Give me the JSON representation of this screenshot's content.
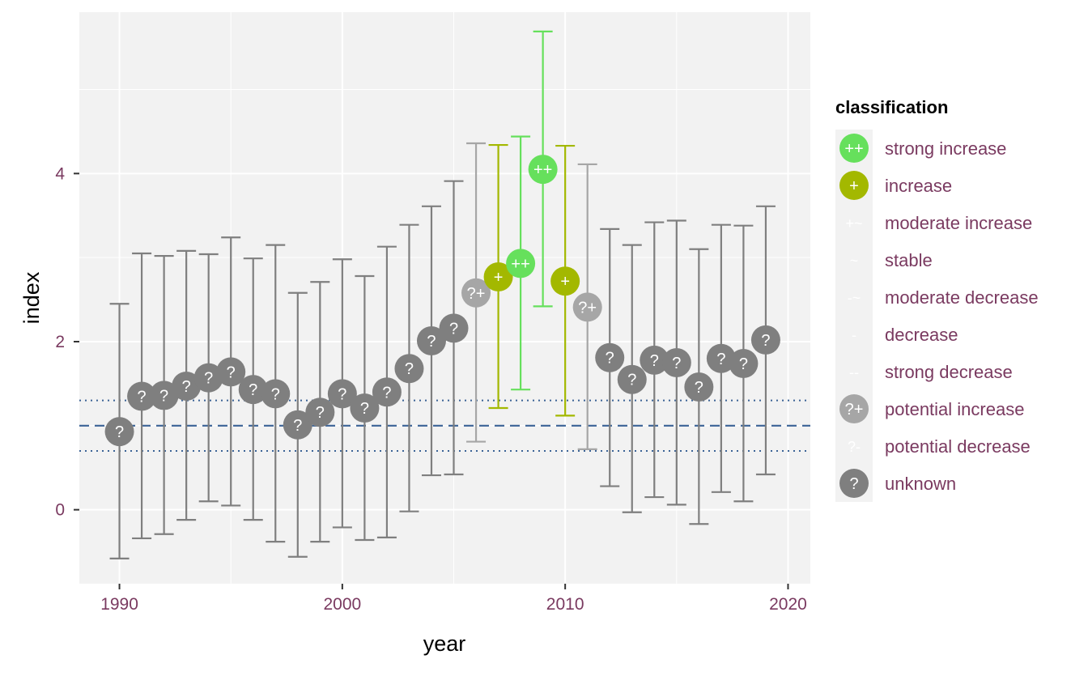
{
  "chart_data": {
    "type": "scatter",
    "title": "",
    "xlabel": "year",
    "ylabel": "index",
    "xlim": [
      1988.2,
      2021
    ],
    "ylim": [
      -0.88,
      5.92
    ],
    "x_ticks": [
      1990,
      2000,
      2010,
      2020
    ],
    "x_minor": [
      1995,
      2005,
      2015
    ],
    "y_ticks": [
      0,
      2,
      4
    ],
    "y_minor": [
      1,
      3,
      5
    ],
    "reference_line": 1.0,
    "threshold_lines": [
      0.7,
      1.3
    ],
    "grid": true,
    "legend": {
      "title": "classification",
      "placement": "right",
      "entries": [
        {
          "key": "strong_increase",
          "label": "strong increase",
          "symbol": "++",
          "color": "#66E05C",
          "marker": true
        },
        {
          "key": "increase",
          "label": "increase",
          "symbol": "+",
          "color": "#A3B800",
          "marker": true
        },
        {
          "key": "moderate_increase",
          "label": "moderate increase",
          "symbol": "+~",
          "color": "#BFD000",
          "marker": false
        },
        {
          "key": "stable",
          "label": "stable",
          "symbol": "~",
          "color": "#DDDDDD",
          "marker": false
        },
        {
          "key": "moderate_decrease",
          "label": "moderate decrease",
          "symbol": "-~",
          "color": "#F0B000",
          "marker": false
        },
        {
          "key": "decrease",
          "label": "decrease",
          "symbol": "-",
          "color": "#E08000",
          "marker": false
        },
        {
          "key": "strong_decrease",
          "label": "strong decrease",
          "symbol": "--",
          "color": "#D04000",
          "marker": false
        },
        {
          "key": "potential_increase",
          "label": "potential increase",
          "symbol": "?+",
          "color": "#A6A6A6",
          "marker": true
        },
        {
          "key": "potential_decrease",
          "label": "potential decrease",
          "symbol": "?-",
          "color": "#A6A6A6",
          "marker": false
        },
        {
          "key": "unknown",
          "label": "unknown",
          "symbol": "?",
          "color": "#7F7F7F",
          "marker": true
        }
      ]
    },
    "points": [
      {
        "x": 1990,
        "y": 0.93,
        "lcl": -0.58,
        "ucl": 2.45,
        "class": "unknown"
      },
      {
        "x": 1991,
        "y": 1.35,
        "lcl": -0.34,
        "ucl": 3.05,
        "class": "unknown"
      },
      {
        "x": 1992,
        "y": 1.36,
        "lcl": -0.29,
        "ucl": 3.02,
        "class": "unknown"
      },
      {
        "x": 1993,
        "y": 1.47,
        "lcl": -0.12,
        "ucl": 3.08,
        "class": "unknown"
      },
      {
        "x": 1994,
        "y": 1.57,
        "lcl": 0.1,
        "ucl": 3.04,
        "class": "unknown"
      },
      {
        "x": 1995,
        "y": 1.64,
        "lcl": 0.05,
        "ucl": 3.24,
        "class": "unknown"
      },
      {
        "x": 1996,
        "y": 1.43,
        "lcl": -0.12,
        "ucl": 2.99,
        "class": "unknown"
      },
      {
        "x": 1997,
        "y": 1.38,
        "lcl": -0.38,
        "ucl": 3.15,
        "class": "unknown"
      },
      {
        "x": 1998,
        "y": 1.01,
        "lcl": -0.56,
        "ucl": 2.58,
        "class": "unknown"
      },
      {
        "x": 1999,
        "y": 1.16,
        "lcl": -0.38,
        "ucl": 2.71,
        "class": "unknown"
      },
      {
        "x": 2000,
        "y": 1.38,
        "lcl": -0.21,
        "ucl": 2.98,
        "class": "unknown"
      },
      {
        "x": 2001,
        "y": 1.21,
        "lcl": -0.36,
        "ucl": 2.78,
        "class": "unknown"
      },
      {
        "x": 2002,
        "y": 1.4,
        "lcl": -0.33,
        "ucl": 3.13,
        "class": "unknown"
      },
      {
        "x": 2003,
        "y": 1.68,
        "lcl": -0.02,
        "ucl": 3.39,
        "class": "unknown"
      },
      {
        "x": 2004,
        "y": 2.01,
        "lcl": 0.41,
        "ucl": 3.61,
        "class": "unknown"
      },
      {
        "x": 2005,
        "y": 2.16,
        "lcl": 0.42,
        "ucl": 3.91,
        "class": "unknown"
      },
      {
        "x": 2006,
        "y": 2.58,
        "lcl": 0.81,
        "ucl": 4.36,
        "class": "potential_increase"
      },
      {
        "x": 2007,
        "y": 2.77,
        "lcl": 1.21,
        "ucl": 4.34,
        "class": "increase"
      },
      {
        "x": 2008,
        "y": 2.93,
        "lcl": 1.43,
        "ucl": 4.44,
        "class": "strong_increase"
      },
      {
        "x": 2009,
        "y": 4.05,
        "lcl": 2.42,
        "ucl": 5.69,
        "class": "strong_increase"
      },
      {
        "x": 2010,
        "y": 2.72,
        "lcl": 1.12,
        "ucl": 4.33,
        "class": "increase"
      },
      {
        "x": 2011,
        "y": 2.41,
        "lcl": 0.72,
        "ucl": 4.11,
        "class": "potential_increase"
      },
      {
        "x": 2012,
        "y": 1.81,
        "lcl": 0.28,
        "ucl": 3.34,
        "class": "unknown"
      },
      {
        "x": 2013,
        "y": 1.55,
        "lcl": -0.03,
        "ucl": 3.15,
        "class": "unknown"
      },
      {
        "x": 2014,
        "y": 1.78,
        "lcl": 0.15,
        "ucl": 3.42,
        "class": "unknown"
      },
      {
        "x": 2015,
        "y": 1.75,
        "lcl": 0.06,
        "ucl": 3.44,
        "class": "unknown"
      },
      {
        "x": 2016,
        "y": 1.46,
        "lcl": -0.17,
        "ucl": 3.1,
        "class": "unknown"
      },
      {
        "x": 2017,
        "y": 1.8,
        "lcl": 0.21,
        "ucl": 3.39,
        "class": "unknown"
      },
      {
        "x": 2018,
        "y": 1.74,
        "lcl": 0.1,
        "ucl": 3.38,
        "class": "unknown"
      },
      {
        "x": 2019,
        "y": 2.02,
        "lcl": 0.42,
        "ucl": 3.61,
        "class": "unknown"
      }
    ]
  }
}
